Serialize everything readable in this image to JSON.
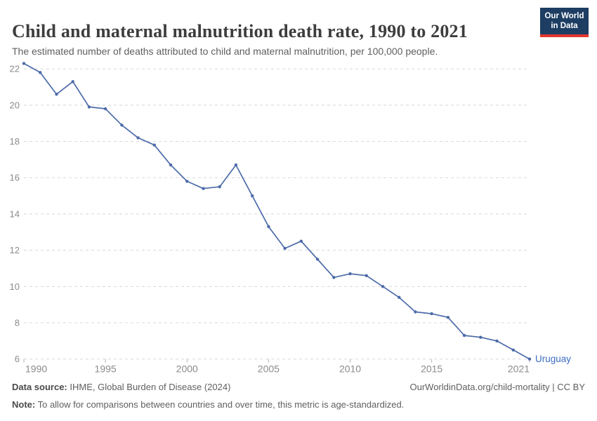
{
  "header": {
    "title": "Child and maternal malnutrition death rate, 1990 to 2021",
    "subtitle": "The estimated number of deaths attributed to child and maternal malnutrition, per 100,000 people.",
    "logo": {
      "line1": "Our World",
      "line2": "in Data",
      "bg_color": "#1d3d63",
      "accent_color": "#e2372e"
    }
  },
  "chart_data": {
    "type": "line",
    "title": "Child and maternal malnutrition death rate, 1990 to 2021",
    "xlabel": "",
    "ylabel": "",
    "x": [
      1990,
      1991,
      1992,
      1993,
      1994,
      1995,
      1996,
      1997,
      1998,
      1999,
      2000,
      2001,
      2002,
      2003,
      2004,
      2005,
      2006,
      2007,
      2008,
      2009,
      2010,
      2011,
      2012,
      2013,
      2014,
      2015,
      2016,
      2017,
      2018,
      2019,
      2020,
      2021
    ],
    "series": [
      {
        "name": "Uruguay",
        "color": "#4d6ba9",
        "label_color": "#3c6dc4",
        "values": [
          22.3,
          21.8,
          20.6,
          21.3,
          19.9,
          19.8,
          18.9,
          18.2,
          17.8,
          16.7,
          15.8,
          15.4,
          15.5,
          16.7,
          15.0,
          13.3,
          12.1,
          12.5,
          11.5,
          10.5,
          10.7,
          10.6,
          10.0,
          9.4,
          8.6,
          8.5,
          8.3,
          7.3,
          7.2,
          7.0,
          6.5,
          6.0
        ]
      }
    ],
    "x_ticks": [
      1990,
      1995,
      2000,
      2005,
      2010,
      2015,
      2021
    ],
    "y_ticks": [
      6,
      8,
      10,
      12,
      14,
      16,
      18,
      20,
      22
    ],
    "xlim": [
      1990,
      2021
    ],
    "ylim": [
      6,
      22.5
    ],
    "grid": "horizontal-dashed",
    "legend_position": "end-of-line",
    "grid_color": "#d8d8d8",
    "tick_label_color": "#8b8b8b",
    "tick_mark_color": "#b0b0b0",
    "end_label": "Uruguay"
  },
  "footer": {
    "datasource_label": "Data source:",
    "datasource_text": " IHME, Global Burden of Disease (2024)",
    "note_label": "Note:",
    "note_text": " To allow for comparisons between countries and over time, this metric is age-standardized.",
    "license_text": "OurWorldinData.org/child-mortality | CC BY"
  }
}
